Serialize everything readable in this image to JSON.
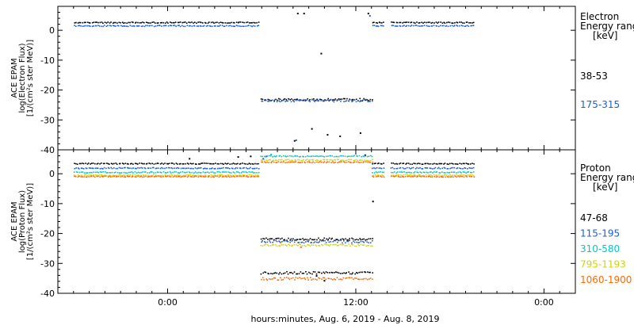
{
  "chart_data": [
    {
      "type": "scatter",
      "panel": "electron",
      "ylabel_lines": [
        "ACE EPAM",
        "log(Electron Flux)",
        "[1/(cm²s ster MeV)]"
      ],
      "legend_title_lines": [
        "Electron",
        "Energy ranges",
        "[keV]"
      ],
      "ylim": [
        -40,
        8
      ],
      "yticks": [
        0,
        -10,
        -20,
        -30,
        -40
      ],
      "series": [
        {
          "name": "38-53",
          "color": "#000000",
          "segments": [
            {
              "x": [
                -6.0,
                5.8
              ],
              "y": 2.5
            },
            {
              "x": [
                13.0,
                13.8
              ],
              "y": 2.5
            },
            {
              "x": [
                14.2,
                19.5
              ],
              "y": 2.5
            },
            {
              "x": [
                5.9,
                13.0
              ],
              "y": -23.3
            }
          ],
          "points": [
            [
              8.3,
              5.6
            ],
            [
              8.7,
              5.6
            ],
            [
              12.8,
              5.6
            ],
            [
              9.8,
              -7.8
            ],
            [
              9.2,
              -33.0
            ],
            [
              10.2,
              -35.0
            ],
            [
              11.0,
              -35.5
            ],
            [
              12.3,
              -34.4
            ],
            [
              8.1,
              -37.0
            ]
          ]
        },
        {
          "name": "175-315",
          "color": "#1e5fcf",
          "segments": [
            {
              "x": [
                -6.0,
                5.8
              ],
              "y": 1.4
            },
            {
              "x": [
                13.0,
                13.8
              ],
              "y": 1.4
            },
            {
              "x": [
                14.2,
                19.5
              ],
              "y": 1.4
            },
            {
              "x": [
                5.9,
                13.0
              ],
              "y": -23.6
            }
          ],
          "points": [
            [
              12.9,
              4.8
            ],
            [
              8.2,
              -36.8
            ]
          ]
        }
      ]
    },
    {
      "type": "scatter",
      "panel": "proton",
      "ylabel_lines": [
        "ACE EPAM",
        "log(Proton Flux)",
        "[1/(cm²s ster MeV)]"
      ],
      "legend_title_lines": [
        "Proton",
        "Energy ranges",
        "[keV]"
      ],
      "ylim": [
        -40,
        8
      ],
      "yticks": [
        0,
        -10,
        -20,
        -30,
        -40
      ],
      "xticks": [
        0,
        12,
        24
      ],
      "xticklabels": [
        "0:00",
        "12:00",
        "0:00"
      ],
      "xlabel": "hours:minutes, Aug.  6, 2019 - Aug.  8, 2019",
      "xlim": [
        -7.0,
        26.0
      ],
      "series": [
        {
          "name": "47-68",
          "color": "#000000",
          "segments": [
            {
              "x": [
                -6.0,
                5.8
              ],
              "y": 3.3
            },
            {
              "x": [
                13.0,
                13.8
              ],
              "y": 3.3
            },
            {
              "x": [
                14.2,
                19.5
              ],
              "y": 3.3
            },
            {
              "x": [
                5.9,
                13.0
              ],
              "y": -22.0
            },
            {
              "x": [
                5.9,
                13.0
              ],
              "y": -33.2
            }
          ],
          "points": [
            [
              1.4,
              5.0
            ],
            [
              4.5,
              5.6
            ],
            [
              5.3,
              5.8
            ],
            [
              12.6,
              6.2
            ],
            [
              9.5,
              -34.2
            ],
            [
              10.0,
              -35.8
            ],
            [
              13.1,
              -9.3
            ]
          ]
        },
        {
          "name": "115-195",
          "color": "#1e5fcf",
          "segments": [
            {
              "x": [
                -6.0,
                5.8
              ],
              "y": 1.8
            },
            {
              "x": [
                13.0,
                13.8
              ],
              "y": 1.8
            },
            {
              "x": [
                14.2,
                19.5
              ],
              "y": 1.8
            },
            {
              "x": [
                5.9,
                13.0
              ],
              "y": -22.8
            }
          ],
          "points": [
            [
              6.1,
              5.0
            ],
            [
              6.3,
              5.8
            ]
          ]
        },
        {
          "name": "310-580",
          "color": "#00c8c8",
          "segments": [
            {
              "x": [
                -6.0,
                5.8
              ],
              "y": 0.4
            },
            {
              "x": [
                13.0,
                13.8
              ],
              "y": 0.4
            },
            {
              "x": [
                14.2,
                19.5
              ],
              "y": 0.4
            },
            {
              "x": [
                5.9,
                13.0
              ],
              "y": 5.8
            }
          ],
          "points": [
            [
              6.6,
              6.4
            ]
          ]
        },
        {
          "name": "795-1193",
          "color": "#d4d400",
          "segments": [
            {
              "x": [
                -6.0,
                5.8
              ],
              "y": -0.6
            },
            {
              "x": [
                13.0,
                13.8
              ],
              "y": -0.6
            },
            {
              "x": [
                14.2,
                19.5
              ],
              "y": -0.6
            },
            {
              "x": [
                5.9,
                13.0
              ],
              "y": 4.5
            },
            {
              "x": [
                5.9,
                13.0
              ],
              "y": -24.0
            }
          ],
          "points": []
        },
        {
          "name": "1060-1900",
          "color": "#ff6a00",
          "segments": [
            {
              "x": [
                -6.0,
                5.8
              ],
              "y": -1.0
            },
            {
              "x": [
                13.0,
                13.8
              ],
              "y": -1.0
            },
            {
              "x": [
                14.2,
                19.5
              ],
              "y": -1.0
            },
            {
              "x": [
                5.9,
                13.0
              ],
              "y": 3.8
            },
            {
              "x": [
                5.9,
                13.0
              ],
              "y": -35.2
            }
          ],
          "points": [
            [
              8.5,
              -24.6
            ],
            [
              7.2,
              -23.0
            ]
          ]
        }
      ]
    }
  ]
}
